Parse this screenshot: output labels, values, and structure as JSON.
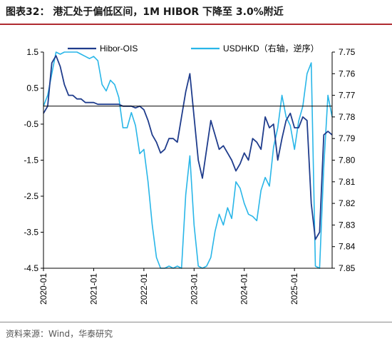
{
  "header": {
    "title": "图表32：  港汇处于偏低区间，1M HIBOR 下降至 3.0%附近"
  },
  "footer": {
    "source": "资料来源：Wind，华泰研究"
  },
  "colors": {
    "hibor_ois": "#1f3c8c",
    "usdhkd": "#29b6e8",
    "title_rule": "#b02a30"
  },
  "chart_data": {
    "type": "line",
    "title": "",
    "xlabel": "",
    "ylabel": "",
    "x_ticks": [
      "2020-01",
      "2021-01",
      "2022-01",
      "2023-01",
      "2024-01",
      "2025-01"
    ],
    "x_range": [
      "2020-01",
      "2025-10"
    ],
    "y_left": {
      "range": [
        -4.5,
        1.5
      ],
      "ticks": [
        "1.5",
        "0.5",
        "-0.5",
        "-1.5",
        "-2.5",
        "-3.5",
        "-4.5"
      ]
    },
    "y_right": {
      "range": [
        7.75,
        7.85
      ],
      "reversed": true,
      "ticks": [
        "7.75",
        "7.76",
        "7.77",
        "7.78",
        "7.79",
        "7.80",
        "7.81",
        "7.82",
        "7.83",
        "7.84",
        "7.85"
      ]
    },
    "reference_line": {
      "axis": "left",
      "value": 0
    },
    "legend": {
      "placement": "top",
      "items": [
        "Hibor-OIS",
        "USDHKD（右轴，逆序）"
      ]
    },
    "grid": false,
    "series": [
      {
        "name": "Hibor-OIS",
        "axis": "left",
        "points": [
          [
            "2020-01",
            -0.2
          ],
          [
            "2020-02",
            0.0
          ],
          [
            "2020-03",
            1.2
          ],
          [
            "2020-04",
            1.4
          ],
          [
            "2020-05",
            1.1
          ],
          [
            "2020-06",
            0.6
          ],
          [
            "2020-07",
            0.3
          ],
          [
            "2020-08",
            0.3
          ],
          [
            "2020-09",
            0.2
          ],
          [
            "2020-10",
            0.2
          ],
          [
            "2020-11",
            0.1
          ],
          [
            "2020-12",
            0.1
          ],
          [
            "2021-01",
            0.1
          ],
          [
            "2021-02",
            0.05
          ],
          [
            "2021-03",
            0.05
          ],
          [
            "2021-04",
            0.05
          ],
          [
            "2021-05",
            0.05
          ],
          [
            "2021-06",
            0.05
          ],
          [
            "2021-07",
            0.05
          ],
          [
            "2021-08",
            0.0
          ],
          [
            "2021-09",
            0.0
          ],
          [
            "2021-10",
            0.0
          ],
          [
            "2021-11",
            -0.05
          ],
          [
            "2021-12",
            0.0
          ],
          [
            "2022-01",
            -0.1
          ],
          [
            "2022-02",
            -0.4
          ],
          [
            "2022-03",
            -0.8
          ],
          [
            "2022-04",
            -1.0
          ],
          [
            "2022-05",
            -1.3
          ],
          [
            "2022-06",
            -1.2
          ],
          [
            "2022-07",
            -0.9
          ],
          [
            "2022-08",
            -0.9
          ],
          [
            "2022-09",
            -1.0
          ],
          [
            "2022-10",
            -0.3
          ],
          [
            "2022-11",
            0.4
          ],
          [
            "2022-12",
            0.9
          ],
          [
            "2023-01",
            -0.3
          ],
          [
            "2023-02",
            -1.5
          ],
          [
            "2023-03",
            -2.0
          ],
          [
            "2023-04",
            -1.2
          ],
          [
            "2023-05",
            -0.4
          ],
          [
            "2023-06",
            -0.8
          ],
          [
            "2023-07",
            -1.2
          ],
          [
            "2023-08",
            -1.1
          ],
          [
            "2023-09",
            -1.3
          ],
          [
            "2023-10",
            -1.5
          ],
          [
            "2023-11",
            -1.8
          ],
          [
            "2023-12",
            -1.6
          ],
          [
            "2024-01",
            -1.3
          ],
          [
            "2024-02",
            -1.5
          ],
          [
            "2024-03",
            -0.9
          ],
          [
            "2024-04",
            -1.0
          ],
          [
            "2024-05",
            -1.2
          ],
          [
            "2024-06",
            -0.3
          ],
          [
            "2024-07",
            -0.6
          ],
          [
            "2024-08",
            -0.5
          ],
          [
            "2024-09",
            -1.5
          ],
          [
            "2024-10",
            -0.9
          ],
          [
            "2024-11",
            -0.4
          ],
          [
            "2024-12",
            -0.2
          ],
          [
            "2025-01",
            -0.6
          ],
          [
            "2025-02",
            -0.6
          ],
          [
            "2025-03",
            -0.3
          ],
          [
            "2025-04",
            -0.4
          ],
          [
            "2025-05",
            -2.7
          ],
          [
            "2025-06",
            -3.7
          ],
          [
            "2025-07",
            -3.5
          ],
          [
            "2025-08",
            -0.8
          ],
          [
            "2025-09",
            -0.7
          ],
          [
            "2025-10",
            -0.8
          ]
        ]
      },
      {
        "name": "USDHKD（右轴，逆序）",
        "axis": "right",
        "points": [
          [
            "2020-01",
            7.775
          ],
          [
            "2020-02",
            7.77
          ],
          [
            "2020-03",
            7.76
          ],
          [
            "2020-04",
            7.75
          ],
          [
            "2020-05",
            7.751
          ],
          [
            "2020-06",
            7.75
          ],
          [
            "2020-07",
            7.75
          ],
          [
            "2020-08",
            7.75
          ],
          [
            "2020-09",
            7.75
          ],
          [
            "2020-10",
            7.751
          ],
          [
            "2020-11",
            7.752
          ],
          [
            "2020-12",
            7.753
          ],
          [
            "2021-01",
            7.752
          ],
          [
            "2021-02",
            7.754
          ],
          [
            "2021-03",
            7.765
          ],
          [
            "2021-04",
            7.768
          ],
          [
            "2021-05",
            7.763
          ],
          [
            "2021-06",
            7.765
          ],
          [
            "2021-07",
            7.771
          ],
          [
            "2021-08",
            7.785
          ],
          [
            "2021-09",
            7.785
          ],
          [
            "2021-10",
            7.778
          ],
          [
            "2021-11",
            7.784
          ],
          [
            "2021-12",
            7.797
          ],
          [
            "2022-01",
            7.795
          ],
          [
            "2022-02",
            7.81
          ],
          [
            "2022-03",
            7.83
          ],
          [
            "2022-04",
            7.845
          ],
          [
            "2022-05",
            7.85
          ],
          [
            "2022-06",
            7.85
          ],
          [
            "2022-07",
            7.849
          ],
          [
            "2022-08",
            7.85
          ],
          [
            "2022-09",
            7.849
          ],
          [
            "2022-10",
            7.85
          ],
          [
            "2022-11",
            7.816
          ],
          [
            "2022-12",
            7.798
          ],
          [
            "2023-01",
            7.83
          ],
          [
            "2023-02",
            7.849
          ],
          [
            "2023-03",
            7.85
          ],
          [
            "2023-04",
            7.849
          ],
          [
            "2023-05",
            7.845
          ],
          [
            "2023-06",
            7.833
          ],
          [
            "2023-07",
            7.825
          ],
          [
            "2023-08",
            7.83
          ],
          [
            "2023-09",
            7.822
          ],
          [
            "2023-10",
            7.827
          ],
          [
            "2023-11",
            7.81
          ],
          [
            "2023-12",
            7.813
          ],
          [
            "2024-01",
            7.82
          ],
          [
            "2024-02",
            7.825
          ],
          [
            "2024-03",
            7.826
          ],
          [
            "2024-04",
            7.828
          ],
          [
            "2024-05",
            7.814
          ],
          [
            "2024-06",
            7.808
          ],
          [
            "2024-07",
            7.812
          ],
          [
            "2024-08",
            7.794
          ],
          [
            "2024-09",
            7.785
          ],
          [
            "2024-10",
            7.77
          ],
          [
            "2024-11",
            7.78
          ],
          [
            "2024-12",
            7.784
          ],
          [
            "2025-01",
            7.795
          ],
          [
            "2025-02",
            7.782
          ],
          [
            "2025-03",
            7.775
          ],
          [
            "2025-04",
            7.76
          ],
          [
            "2025-05",
            7.755
          ],
          [
            "2025-06",
            7.849
          ],
          [
            "2025-07",
            7.85
          ],
          [
            "2025-08",
            7.803
          ],
          [
            "2025-09",
            7.77
          ],
          [
            "2025-10",
            7.78
          ]
        ]
      }
    ]
  }
}
